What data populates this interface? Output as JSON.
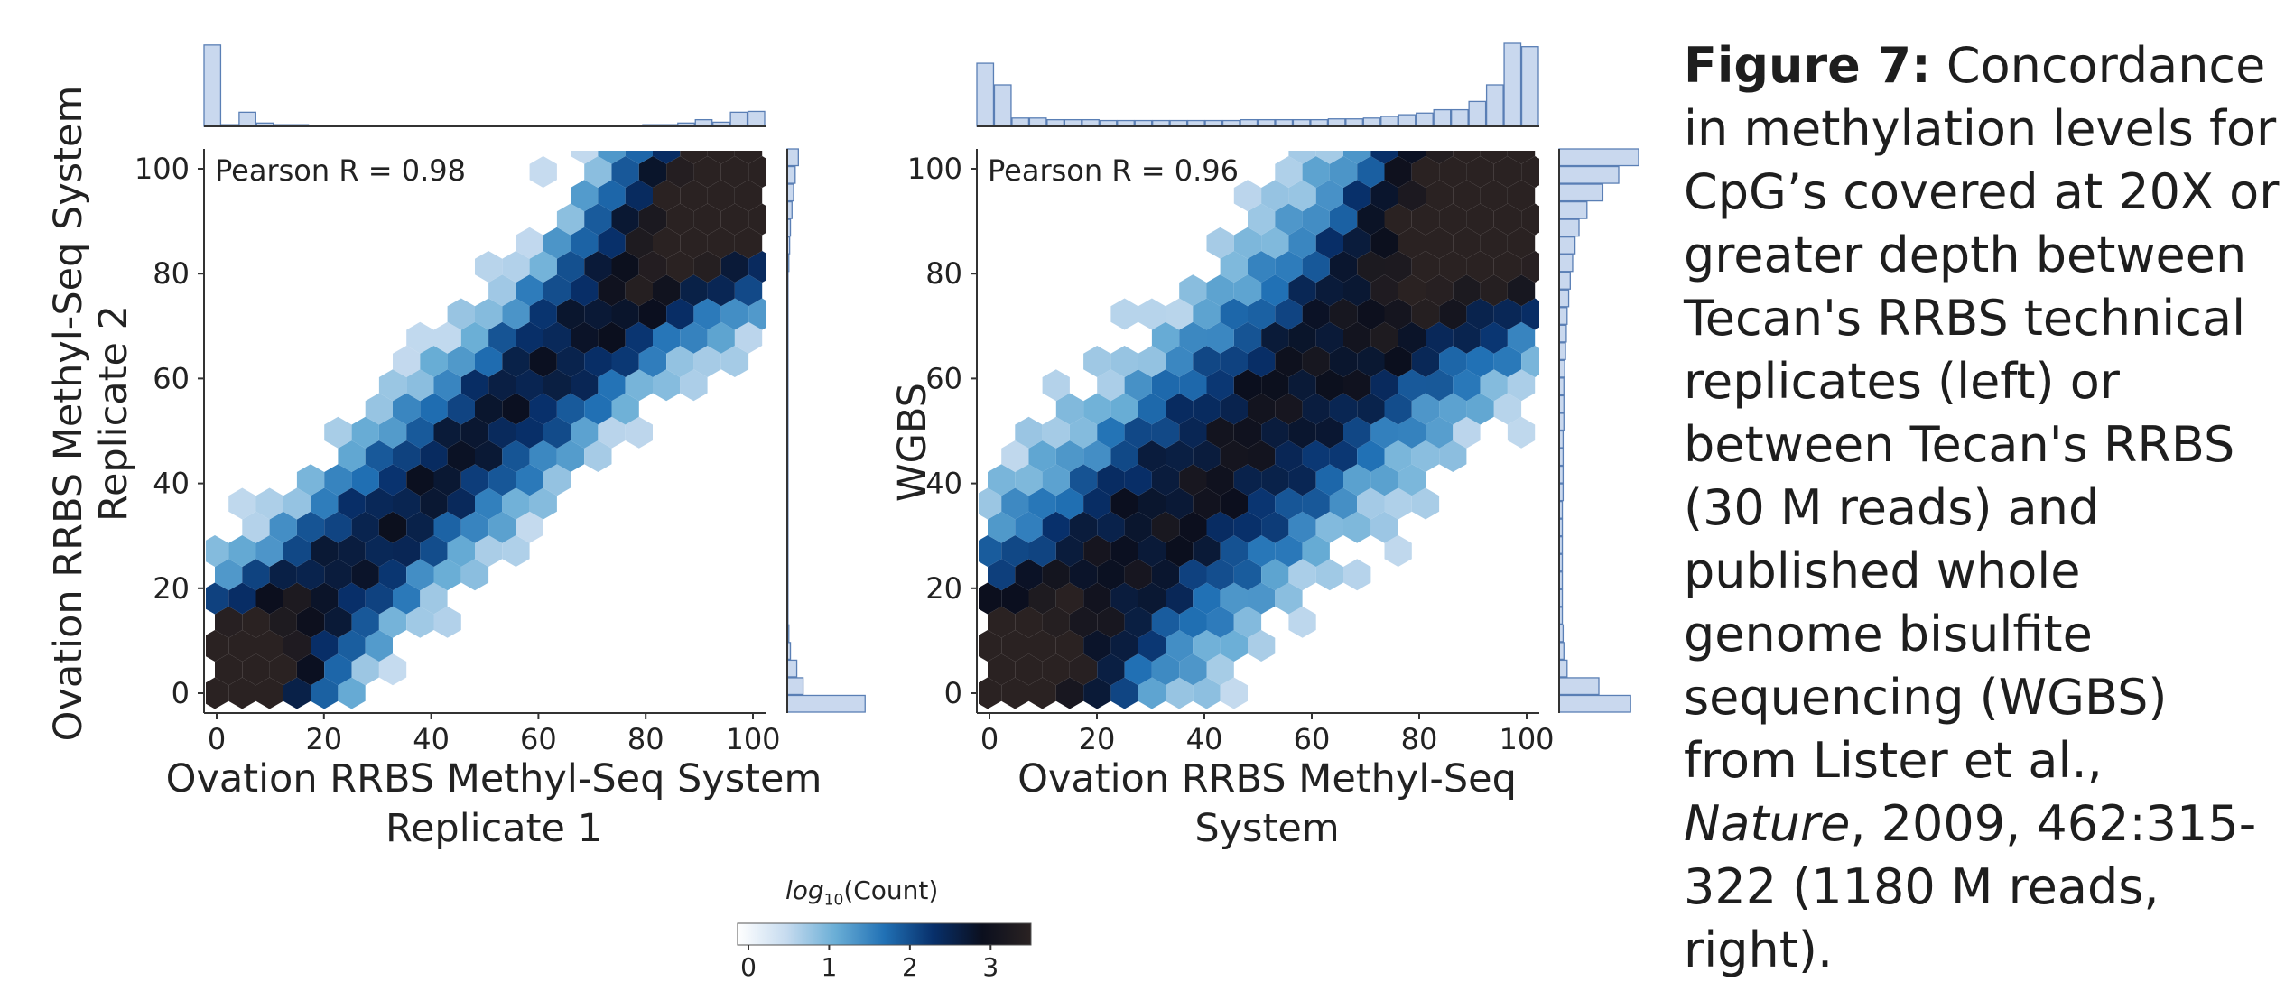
{
  "chart_data": [
    {
      "type": "heatmap",
      "subtype": "hexbin",
      "annotation": "Pearson R = 0.98",
      "xlabel": "Ovation RRBS Methyl-Seq System Replicate 1",
      "xlabel_lines": [
        "Ovation RRBS Methyl-Seq System",
        "Replicate 1"
      ],
      "ylabel": "Ovation RRBS Methyl-Seq System Replicate 2",
      "ylabel_lines": [
        "Ovation RRBS Methyl-Seq System",
        "Replicate 2"
      ],
      "xlim": [
        0,
        100
      ],
      "ylim": [
        0,
        100
      ],
      "xticks": [
        "0",
        "20",
        "40",
        "60",
        "80",
        "100"
      ],
      "yticks": [
        "0",
        "20",
        "40",
        "60",
        "80",
        "100"
      ],
      "correlation": 0.98,
      "density_model": {
        "diagonal_spread": 11,
        "corner_low": 2.6,
        "corner_high": 2.4,
        "max_log10": 3.5
      },
      "marginal_top": [
        0.98,
        0.02,
        0.17,
        0.04,
        0.02,
        0.02,
        0.01,
        0.01,
        0.01,
        0.01,
        0.01,
        0.01,
        0.01,
        0.01,
        0.01,
        0.01,
        0.01,
        0.01,
        0.01,
        0.01,
        0.01,
        0.01,
        0.01,
        0.01,
        0.01,
        0.02,
        0.02,
        0.04,
        0.08,
        0.05,
        0.17,
        0.18
      ],
      "marginal_right": [
        0.98,
        0.2,
        0.12,
        0.04,
        0.02,
        0.01,
        0.01,
        0.01,
        0.01,
        0.01,
        0.01,
        0.01,
        0.01,
        0.01,
        0.01,
        0.01,
        0.01,
        0.01,
        0.01,
        0.01,
        0.01,
        0.01,
        0.01,
        0.01,
        0.01,
        0.02,
        0.03,
        0.04,
        0.06,
        0.08,
        0.1,
        0.14
      ]
    },
    {
      "type": "heatmap",
      "subtype": "hexbin",
      "annotation": "Pearson R = 0.96",
      "xlabel": "Ovation RRBS Methyl-Seq System",
      "xlabel_lines": [
        "Ovation RRBS Methyl-Seq",
        "System"
      ],
      "ylabel": "WGBS",
      "ylabel_lines": [
        "WGBS"
      ],
      "xlim": [
        0,
        100
      ],
      "ylim": [
        0,
        100
      ],
      "xticks": [
        "0",
        "20",
        "40",
        "60",
        "80",
        "100"
      ],
      "yticks": [
        "0",
        "20",
        "40",
        "60",
        "80",
        "100"
      ],
      "correlation": 0.96,
      "density_model": {
        "diagonal_spread": 17,
        "corner_low": 2.1,
        "corner_high": 2.4,
        "max_log10": 3.2
      },
      "marginal_top": [
        0.76,
        0.5,
        0.1,
        0.1,
        0.08,
        0.08,
        0.08,
        0.07,
        0.07,
        0.07,
        0.07,
        0.07,
        0.07,
        0.07,
        0.07,
        0.08,
        0.08,
        0.08,
        0.08,
        0.08,
        0.09,
        0.09,
        0.1,
        0.12,
        0.14,
        0.16,
        0.2,
        0.2,
        0.3,
        0.5,
        1.0,
        0.96
      ],
      "marginal_right": [
        0.9,
        0.5,
        0.1,
        0.06,
        0.05,
        0.04,
        0.04,
        0.04,
        0.04,
        0.04,
        0.04,
        0.04,
        0.05,
        0.05,
        0.05,
        0.05,
        0.06,
        0.06,
        0.06,
        0.07,
        0.08,
        0.09,
        0.1,
        0.12,
        0.14,
        0.17,
        0.2,
        0.25,
        0.35,
        0.55,
        0.75,
        1.0
      ]
    }
  ],
  "colorbar": {
    "label_prefix": "log",
    "label_sub": "10",
    "label_suffix": "(Count)",
    "ticks": [
      "0",
      "1",
      "2",
      "3"
    ],
    "range": [
      0,
      3.5
    ],
    "colors": [
      "#ffffff",
      "#c6dbef",
      "#6aaed6",
      "#2171b5",
      "#08306b",
      "#0b0f1e",
      "#2a2222"
    ]
  },
  "caption": {
    "lead": "Figure 7:",
    "text_a": " Concordance in methylation levels for CpG’s covered at 20X or greater depth between Tecan's RRBS technical replicates (left) or between Tecan's RRBS (30 M reads) and published whole genome bisulfite sequencing (WGBS) from Lister et al., ",
    "italic": "Nature",
    "text_b": ", 2009, 462:315-322 (1180 M reads, right)."
  }
}
